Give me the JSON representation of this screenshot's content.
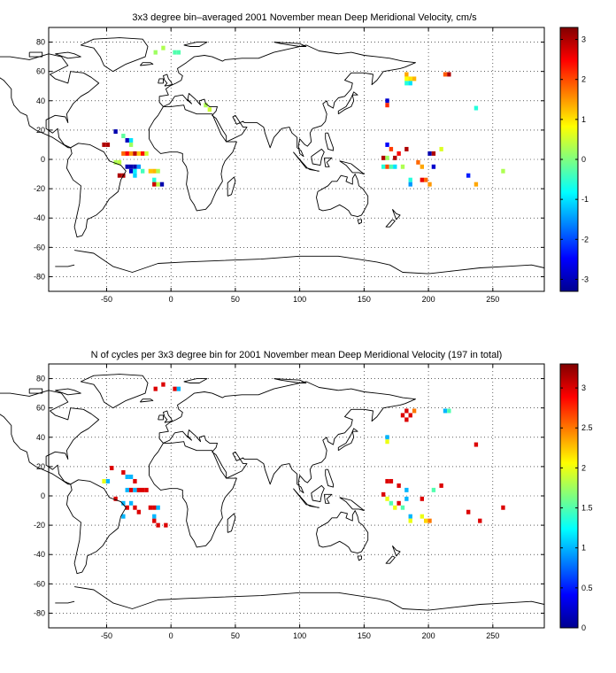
{
  "chart_data": [
    {
      "type": "heatmap",
      "title": "3x3 degree bin–averaged 2001 November mean Deep Meridional Velocity, cm/s",
      "xlim": [
        -95,
        290
      ],
      "ylim": [
        -90,
        90
      ],
      "x_ticks": [
        -50,
        0,
        50,
        100,
        150,
        200,
        250
      ],
      "y_ticks": [
        80,
        60,
        40,
        20,
        0,
        -20,
        -40,
        -60,
        -80
      ],
      "x_tick_labels": [
        "-50",
        "0",
        "50",
        "100",
        "150",
        "200",
        "250"
      ],
      "y_tick_labels": [
        "80",
        "60",
        "40",
        "20",
        "0",
        "-20",
        "-40",
        "-60",
        "-80"
      ],
      "grid": true,
      "bin_size_deg": 3,
      "colorbar": {
        "range": [
          -3.3,
          3.3
        ],
        "ticks": [
          3,
          2,
          1,
          0,
          -1,
          -2,
          -3
        ],
        "tick_labels": [
          "3",
          "2",
          "1",
          "0",
          "-1",
          "-2",
          "-3"
        ],
        "colormap": "jet"
      },
      "cells": [
        {
          "x": -12,
          "y": 73,
          "v": 0.2
        },
        {
          "x": -6,
          "y": 76,
          "v": 0.3
        },
        {
          "x": 3,
          "y": 73,
          "v": -0.3
        },
        {
          "x": 6,
          "y": 73,
          "v": -0.3
        },
        {
          "x": -52,
          "y": 10,
          "v": 3.0
        },
        {
          "x": -49,
          "y": 10,
          "v": 3.0
        },
        {
          "x": -43,
          "y": 19,
          "v": -3.0
        },
        {
          "x": -37,
          "y": 16,
          "v": -0.2
        },
        {
          "x": -34,
          "y": 13,
          "v": -2.9
        },
        {
          "x": -31,
          "y": 13,
          "v": -1.0
        },
        {
          "x": -31,
          "y": 10,
          "v": 0.2
        },
        {
          "x": -37,
          "y": 4,
          "v": 1.8
        },
        {
          "x": -34,
          "y": 4,
          "v": 2.5
        },
        {
          "x": -31,
          "y": 4,
          "v": 1.5
        },
        {
          "x": -28,
          "y": 4,
          "v": 2.9
        },
        {
          "x": -25,
          "y": 4,
          "v": 1.2
        },
        {
          "x": -22,
          "y": 4,
          "v": 2.4
        },
        {
          "x": -19,
          "y": 4,
          "v": 0.5
        },
        {
          "x": -43,
          "y": -2,
          "v": 0.3
        },
        {
          "x": -40,
          "y": -2,
          "v": 0.4
        },
        {
          "x": -34,
          "y": -5,
          "v": -3.0
        },
        {
          "x": -31,
          "y": -5,
          "v": -3.0
        },
        {
          "x": -28,
          "y": -5,
          "v": -3.0
        },
        {
          "x": -25,
          "y": -5,
          "v": -1.5
        },
        {
          "x": -31,
          "y": -8,
          "v": -2.8
        },
        {
          "x": -28,
          "y": -8,
          "v": -0.9
        },
        {
          "x": -22,
          "y": -8,
          "v": -0.4
        },
        {
          "x": -40,
          "y": -11,
          "v": 3.0
        },
        {
          "x": -37,
          "y": -11,
          "v": 3.0
        },
        {
          "x": -28,
          "y": -11,
          "v": -1.1
        },
        {
          "x": -16,
          "y": -8,
          "v": 1.2
        },
        {
          "x": -13,
          "y": -8,
          "v": 1.3
        },
        {
          "x": -10,
          "y": -8,
          "v": 0.3
        },
        {
          "x": -13,
          "y": -14,
          "v": -0.6
        },
        {
          "x": -13,
          "y": -17,
          "v": 2.8
        },
        {
          "x": -10,
          "y": -17,
          "v": 0.4
        },
        {
          "x": -7,
          "y": -17,
          "v": -3.0
        },
        {
          "x": 27,
          "y": 37,
          "v": 0.3
        },
        {
          "x": 30,
          "y": 34,
          "v": 0.5
        },
        {
          "x": 183,
          "y": 58,
          "v": 1.4
        },
        {
          "x": 183,
          "y": 55,
          "v": 0.8
        },
        {
          "x": 186,
          "y": 55,
          "v": 1.0
        },
        {
          "x": 189,
          "y": 55,
          "v": 1.3
        },
        {
          "x": 183,
          "y": 52,
          "v": -0.6
        },
        {
          "x": 186,
          "y": 52,
          "v": -1.0
        },
        {
          "x": 213,
          "y": 58,
          "v": 1.9
        },
        {
          "x": 216,
          "y": 58,
          "v": 3.0
        },
        {
          "x": 168,
          "y": 40,
          "v": -2.8
        },
        {
          "x": 168,
          "y": 37,
          "v": 2.2
        },
        {
          "x": 237,
          "y": 35,
          "v": -0.6
        },
        {
          "x": 168,
          "y": 10,
          "v": -2.5
        },
        {
          "x": 171,
          "y": 7,
          "v": 2.1
        },
        {
          "x": 177,
          "y": 4,
          "v": 2.5
        },
        {
          "x": 183,
          "y": 7,
          "v": 3.0
        },
        {
          "x": 165,
          "y": 1,
          "v": 3.0
        },
        {
          "x": 168,
          "y": 1,
          "v": 0.2
        },
        {
          "x": 174,
          "y": 1,
          "v": 3.0
        },
        {
          "x": 165,
          "y": -5,
          "v": -0.6
        },
        {
          "x": 168,
          "y": -5,
          "v": 2.0
        },
        {
          "x": 171,
          "y": -5,
          "v": -0.3
        },
        {
          "x": 174,
          "y": -5,
          "v": -1.0
        },
        {
          "x": 180,
          "y": -5,
          "v": 0.3
        },
        {
          "x": 201,
          "y": 4,
          "v": -3.0
        },
        {
          "x": 204,
          "y": 4,
          "v": 3.0
        },
        {
          "x": 210,
          "y": 7,
          "v": 0.6
        },
        {
          "x": 192,
          "y": -2,
          "v": 1.8
        },
        {
          "x": 195,
          "y": -5,
          "v": 1.4
        },
        {
          "x": 204,
          "y": -5,
          "v": -2.8
        },
        {
          "x": 186,
          "y": -14,
          "v": -0.6
        },
        {
          "x": 186,
          "y": -17,
          "v": -1.5
        },
        {
          "x": 195,
          "y": -14,
          "v": 2.6
        },
        {
          "x": 198,
          "y": -14,
          "v": 1.8
        },
        {
          "x": 201,
          "y": -17,
          "v": 1.5
        },
        {
          "x": 231,
          "y": -11,
          "v": -2.3
        },
        {
          "x": 237,
          "y": -17,
          "v": 1.4
        },
        {
          "x": 258,
          "y": -8,
          "v": 0.3
        }
      ]
    },
    {
      "type": "heatmap",
      "title": "N of cycles per 3x3 degree bin for 2001 November mean Deep Meridional Velocity (197 in total)",
      "xlim": [
        -95,
        290
      ],
      "ylim": [
        -90,
        90
      ],
      "x_ticks": [
        -50,
        0,
        50,
        100,
        150,
        200,
        250
      ],
      "y_ticks": [
        80,
        60,
        40,
        20,
        0,
        -20,
        -40,
        -60,
        -80
      ],
      "x_tick_labels": [
        "-50",
        "0",
        "50",
        "100",
        "150",
        "200",
        "250"
      ],
      "y_tick_labels": [
        "80",
        "60",
        "40",
        "20",
        "0",
        "-20",
        "-40",
        "-60",
        "-80"
      ],
      "grid": true,
      "bin_size_deg": 3,
      "colorbar": {
        "range": [
          0,
          3.3
        ],
        "ticks": [
          3,
          2.5,
          2,
          1.5,
          1,
          0.5,
          0
        ],
        "tick_labels": [
          "3",
          "2.5",
          "2",
          "1.5",
          "1",
          "0.5",
          "0"
        ],
        "colormap": "jet"
      },
      "cells": [
        {
          "x": -12,
          "y": 73,
          "v": 3.0
        },
        {
          "x": -6,
          "y": 76,
          "v": 3.0
        },
        {
          "x": 3,
          "y": 73,
          "v": 3.0
        },
        {
          "x": 6,
          "y": 73,
          "v": 1.0
        },
        {
          "x": -52,
          "y": 10,
          "v": 2.0
        },
        {
          "x": -49,
          "y": 10,
          "v": 1.0
        },
        {
          "x": -46,
          "y": 19,
          "v": 3.0
        },
        {
          "x": -37,
          "y": 16,
          "v": 3.0
        },
        {
          "x": -34,
          "y": 13,
          "v": 1.0
        },
        {
          "x": -31,
          "y": 13,
          "v": 1.0
        },
        {
          "x": -28,
          "y": 10,
          "v": 3.0
        },
        {
          "x": -34,
          "y": 4,
          "v": 1.0
        },
        {
          "x": -31,
          "y": 4,
          "v": 3.0
        },
        {
          "x": -28,
          "y": 4,
          "v": 1.0
        },
        {
          "x": -25,
          "y": 4,
          "v": 3.0
        },
        {
          "x": -22,
          "y": 4,
          "v": 3.0
        },
        {
          "x": -19,
          "y": 4,
          "v": 3.0
        },
        {
          "x": -43,
          "y": -2,
          "v": 3.0
        },
        {
          "x": -37,
          "y": -5,
          "v": 1.0
        },
        {
          "x": -34,
          "y": -8,
          "v": 3.0
        },
        {
          "x": -31,
          "y": -5,
          "v": 1.0
        },
        {
          "x": -28,
          "y": -8,
          "v": 3.0
        },
        {
          "x": -25,
          "y": -11,
          "v": 3.0
        },
        {
          "x": -37,
          "y": -14,
          "v": 1.0
        },
        {
          "x": -16,
          "y": -8,
          "v": 3.0
        },
        {
          "x": -13,
          "y": -8,
          "v": 3.0
        },
        {
          "x": -10,
          "y": -8,
          "v": 1.0
        },
        {
          "x": -13,
          "y": -14,
          "v": 1.0
        },
        {
          "x": -13,
          "y": -17,
          "v": 3.0
        },
        {
          "x": -10,
          "y": -20,
          "v": 3.0
        },
        {
          "x": -4,
          "y": -20,
          "v": 3.0
        },
        {
          "x": 180,
          "y": 55,
          "v": 3.0
        },
        {
          "x": 183,
          "y": 58,
          "v": 3.0
        },
        {
          "x": 183,
          "y": 52,
          "v": 3.0
        },
        {
          "x": 186,
          "y": 55,
          "v": 3.0
        },
        {
          "x": 189,
          "y": 58,
          "v": 2.5
        },
        {
          "x": 213,
          "y": 58,
          "v": 1.0
        },
        {
          "x": 216,
          "y": 58,
          "v": 1.5
        },
        {
          "x": 168,
          "y": 40,
          "v": 1.0
        },
        {
          "x": 168,
          "y": 37,
          "v": 2.0
        },
        {
          "x": 237,
          "y": 35,
          "v": 3.0
        },
        {
          "x": 168,
          "y": 10,
          "v": 3.0
        },
        {
          "x": 171,
          "y": 10,
          "v": 3.0
        },
        {
          "x": 177,
          "y": 7,
          "v": 3.0
        },
        {
          "x": 183,
          "y": 4,
          "v": 1.0
        },
        {
          "x": 165,
          "y": 1,
          "v": 3.0
        },
        {
          "x": 168,
          "y": -2,
          "v": 2.0
        },
        {
          "x": 171,
          "y": -5,
          "v": 1.5
        },
        {
          "x": 174,
          "y": -8,
          "v": 2.0
        },
        {
          "x": 177,
          "y": -5,
          "v": 3.0
        },
        {
          "x": 180,
          "y": -8,
          "v": 1.5
        },
        {
          "x": 183,
          "y": -2,
          "v": 1.0
        },
        {
          "x": 204,
          "y": 4,
          "v": 1.5
        },
        {
          "x": 210,
          "y": 7,
          "v": 3.0
        },
        {
          "x": 195,
          "y": -2,
          "v": 3.0
        },
        {
          "x": 186,
          "y": -14,
          "v": 1.0
        },
        {
          "x": 186,
          "y": -17,
          "v": 2.0
        },
        {
          "x": 195,
          "y": -14,
          "v": 2.0
        },
        {
          "x": 198,
          "y": -17,
          "v": 2.2
        },
        {
          "x": 201,
          "y": -17,
          "v": 2.5
        },
        {
          "x": 231,
          "y": -11,
          "v": 3.0
        },
        {
          "x": 240,
          "y": -17,
          "v": 3.0
        },
        {
          "x": 258,
          "y": -8,
          "v": 3.0
        }
      ]
    }
  ]
}
